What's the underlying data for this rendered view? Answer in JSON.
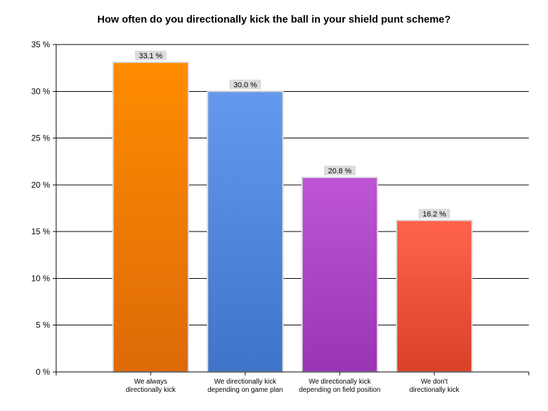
{
  "chart_data": {
    "type": "bar",
    "title": "How often do you directionally kick the ball in your shield punt scheme?",
    "xlabel": "",
    "ylabel": "",
    "ylim": [
      0,
      35
    ],
    "ytick_step": 5,
    "ytick_suffix": " %",
    "grid": true,
    "legend": "none",
    "categories": [
      [
        "We always",
        "directionally kick"
      ],
      [
        "We directionally kick",
        "depending on game plan"
      ],
      [
        "We directionally kick",
        "depending on field position"
      ],
      [
        "We don't",
        "directionally kick"
      ]
    ],
    "values": [
      33.1,
      30.0,
      20.8,
      16.2
    ],
    "data_labels": [
      "33.1 %",
      "30.0 %",
      "20.8 %",
      "16.2 %"
    ],
    "colors": [
      {
        "top": "#ff8c00",
        "bottom": "#dd6a08"
      },
      {
        "top": "#6599ee",
        "bottom": "#3f74c9"
      },
      {
        "top": "#bd55d6",
        "bottom": "#9a34b5"
      },
      {
        "top": "#ff634c",
        "bottom": "#d94128"
      }
    ],
    "label_box_color": "#dcdcdc",
    "bar_border_color": "#d8d8d8"
  }
}
